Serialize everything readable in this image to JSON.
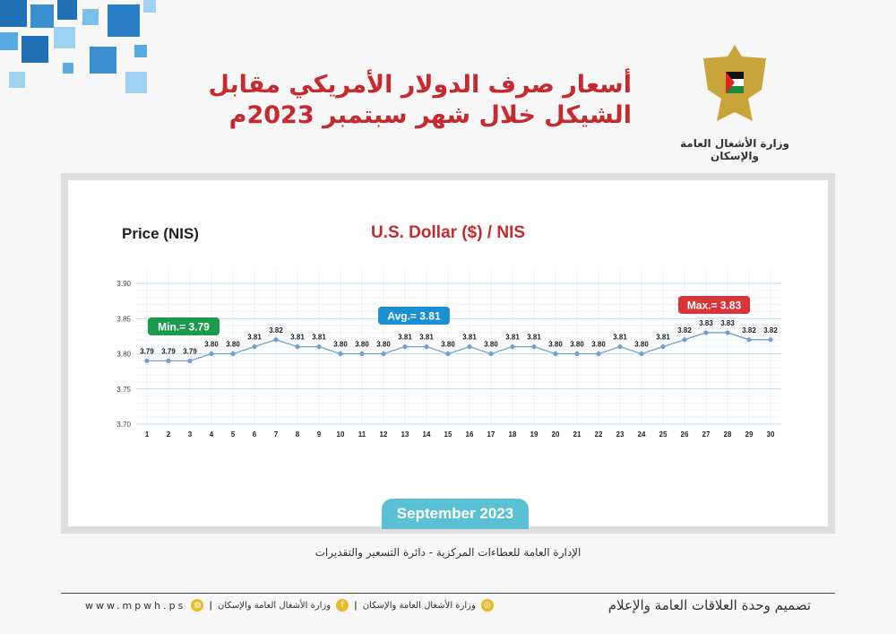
{
  "header": {
    "title_line1": "أسعار صرف الدولار الأمريكي مقابل",
    "title_line2": "الشيكل خلال شهر سبتمبر 2023م",
    "ministry": "وزارة الأشغال العامة والإسكان"
  },
  "colors": {
    "title": "#c62a2f",
    "line": "#6fa1d6",
    "min_badge": "#1a9a4a",
    "avg_badge": "#1a8fd1",
    "max_badge": "#d9343a",
    "month_pill": "#5bc0d3"
  },
  "chart_data": {
    "type": "line",
    "title": "U.S. Dollar ($) / NIS",
    "ylabel": "Price (NIS)",
    "xlabel": "",
    "ylim": [
      3.7,
      3.9
    ],
    "yticks": [
      "3.70",
      "3.75",
      "3.80",
      "3.85",
      "3.90"
    ],
    "grid": true,
    "x": [
      1,
      2,
      3,
      4,
      5,
      6,
      7,
      8,
      9,
      10,
      11,
      12,
      13,
      14,
      15,
      16,
      17,
      18,
      19,
      20,
      21,
      22,
      23,
      24,
      25,
      26,
      27,
      28,
      29,
      30
    ],
    "values": [
      3.79,
      3.79,
      3.79,
      3.8,
      3.8,
      3.81,
      3.82,
      3.81,
      3.81,
      3.8,
      3.8,
      3.8,
      3.81,
      3.81,
      3.8,
      3.81,
      3.8,
      3.81,
      3.81,
      3.8,
      3.8,
      3.8,
      3.81,
      3.8,
      3.81,
      3.82,
      3.83,
      3.83,
      3.82,
      3.82
    ],
    "annotations": {
      "min": "Min.= 3.79",
      "avg": "Avg.= 3.81",
      "max": "Max.= 3.83"
    },
    "period": "September  2023"
  },
  "footer": {
    "department": "الإدارة العامة للعطاءات المركزية - دائرة التسعير والتقديرات",
    "design": "تصميم وحدة العلاقات العامة والإعلام",
    "instagram": "وزارة الأشغال العامة والإسكان",
    "facebook": "وزارة الأشغال العامة والإسكان",
    "website": "www.mpwh.ps"
  }
}
